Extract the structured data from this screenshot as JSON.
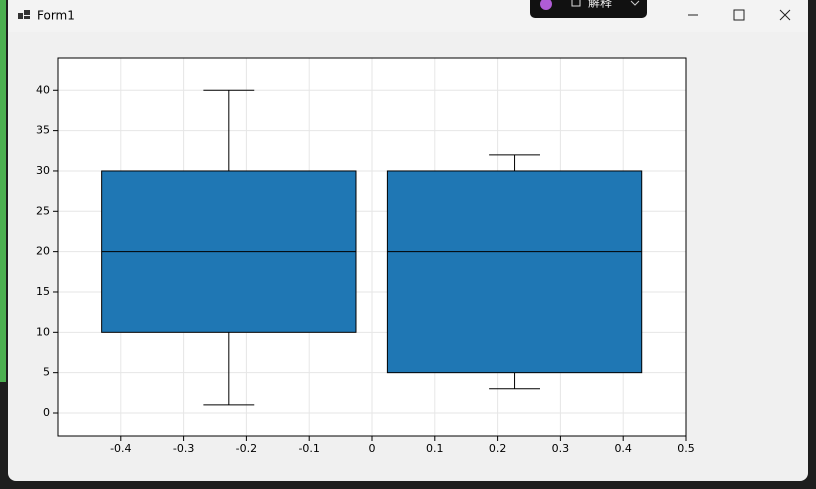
{
  "window": {
    "title": "Form1",
    "overlay_label": "解释"
  },
  "chart_data": {
    "type": "box",
    "color": "#1f77b4",
    "boxes": [
      {
        "x": -0.228,
        "min": 1,
        "q1": 10,
        "median": 20,
        "q3": 30,
        "max": 40
      },
      {
        "x": 0.227,
        "min": 3,
        "q1": 5,
        "median": 20,
        "q3": 30,
        "max": 32
      }
    ],
    "xlim": [
      -0.5,
      0.5
    ],
    "xticks": [
      -0.4,
      -0.3,
      -0.2,
      -0.1,
      0,
      0.1,
      0.2,
      0.3,
      0.4,
      0.5
    ],
    "ylim": [
      -2.85,
      44
    ],
    "yticks": [
      0,
      5,
      10,
      15,
      20,
      25,
      30,
      35,
      40
    ],
    "grid": true
  }
}
